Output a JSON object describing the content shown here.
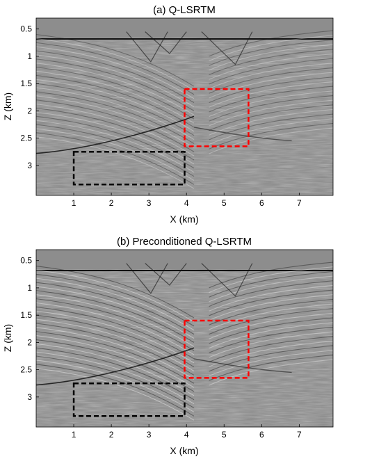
{
  "panels": [
    {
      "title": "(a) Q-LSRTM",
      "xlabel": "X (km)",
      "ylabel": "Z (km)",
      "xticks": [
        "1",
        "2",
        "3",
        "4",
        "5",
        "6",
        "7"
      ],
      "yticks": [
        "0.5",
        "1",
        "1.5",
        "2",
        "2.5",
        "3"
      ],
      "boxes": [
        {
          "name": "red-box",
          "color": "#ff0000",
          "x": [
            3.95,
            5.65
          ],
          "z": [
            1.6,
            2.65
          ]
        },
        {
          "name": "black-box",
          "color": "#000000",
          "x": [
            1.0,
            3.95
          ],
          "z": [
            2.75,
            3.35
          ]
        }
      ]
    },
    {
      "title": "(b) Preconditioned Q-LSRTM",
      "xlabel": "X (km)",
      "ylabel": "Z (km)",
      "xticks": [
        "1",
        "2",
        "3",
        "4",
        "5",
        "6",
        "7"
      ],
      "yticks": [
        "0.5",
        "1",
        "1.5",
        "2",
        "2.5",
        "3"
      ],
      "boxes": [
        {
          "name": "red-box",
          "color": "#ff0000",
          "x": [
            3.95,
            5.65
          ],
          "z": [
            1.6,
            2.65
          ]
        },
        {
          "name": "black-box",
          "color": "#000000",
          "x": [
            1.0,
            3.95
          ],
          "z": [
            2.75,
            3.35
          ]
        }
      ]
    }
  ]
}
